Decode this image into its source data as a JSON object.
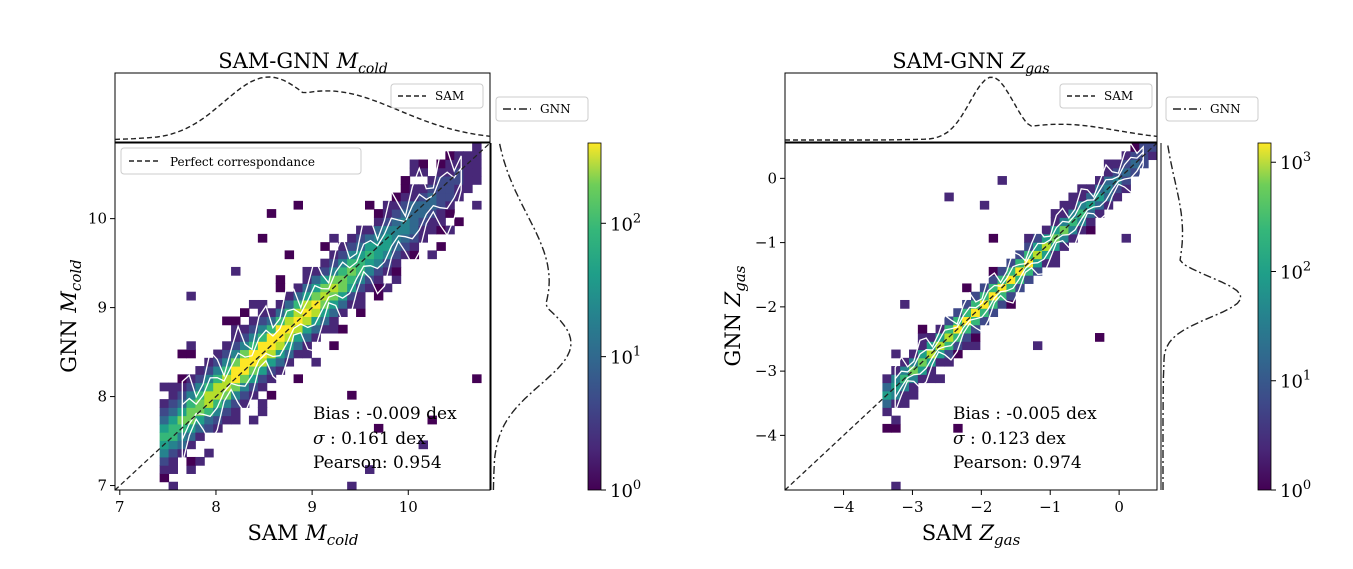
{
  "chart_data": [
    {
      "type": "heatmap",
      "title": "SAM-GNN $M_{cold}$",
      "title_main": "SAM-GNN ",
      "title_sym": "M",
      "title_sub": "cold",
      "xlabel_main": "SAM ",
      "ylabel_main": "GNN ",
      "label_sym": "M",
      "label_sub": "cold",
      "xlim": [
        6.95,
        10.85
      ],
      "ylim": [
        6.95,
        10.85
      ],
      "xticks": [
        "7",
        "8",
        "9",
        "10"
      ],
      "xtick_values": [
        7,
        8,
        9,
        10
      ],
      "yticks": [
        "7",
        "8",
        "9",
        "10"
      ],
      "ytick_values": [
        7,
        8,
        9,
        10
      ],
      "colorbar": {
        "scale": "log",
        "range": [
          1,
          400
        ],
        "ticks": [
          "10",
          "10",
          "10"
        ],
        "tick_exps": [
          "0",
          "1",
          "2"
        ],
        "tick_values": [
          1,
          10,
          100
        ]
      },
      "density_trend": {
        "slope": 0.95,
        "intercept": 0.45,
        "x_range": [
          7.6,
          10.6
        ],
        "peak_x": 8.55,
        "scatter_dex": 0.161
      },
      "stats": {
        "bias": "Bias : -0.009 dex",
        "sigma_sym": "σ",
        "sigma": " : 0.161 dex",
        "pearson": "Pearson:  0.954"
      },
      "legend_main": "Perfect correspondance",
      "legend_top": "SAM",
      "legend_side": "GNN",
      "marginal_peak_sam": 8.55,
      "marginal_peak_gnn": 8.6,
      "grid": false
    },
    {
      "type": "heatmap",
      "title": "SAM-GNN $Z_{gas}$",
      "title_main": "SAM-GNN ",
      "title_sym": "Z",
      "title_sub": "gas",
      "xlabel_main": "SAM ",
      "ylabel_main": "GNN ",
      "label_sym": "Z",
      "label_sub": "gas",
      "xlim": [
        -4.85,
        0.55
      ],
      "ylim": [
        -4.85,
        0.55
      ],
      "xticks": [
        "−4",
        "−3",
        "−2",
        "−1",
        "0"
      ],
      "xtick_values": [
        -4,
        -3,
        -2,
        -1,
        0
      ],
      "yticks": [
        "−4",
        "−3",
        "−2",
        "−1",
        "0"
      ],
      "ytick_values": [
        -4,
        -3,
        -2,
        -1,
        0
      ],
      "colorbar": {
        "scale": "log",
        "range": [
          1,
          1500
        ],
        "ticks": [
          "10",
          "10",
          "10",
          "10"
        ],
        "tick_exps": [
          "0",
          "1",
          "2",
          "3"
        ],
        "tick_values": [
          1,
          10,
          100,
          1000
        ]
      },
      "density_trend": {
        "slope": 1.0,
        "intercept": 0.0,
        "x_range": [
          -3.3,
          0.4
        ],
        "peak_x": -1.85,
        "scatter_dex": 0.123
      },
      "stats": {
        "bias": "Bias : -0.005 dex",
        "sigma_sym": "σ",
        "sigma": " : 0.123 dex",
        "pearson": "Pearson:  0.974"
      },
      "legend_top": "SAM",
      "legend_side": "GNN",
      "marginal_peak_sam": -1.85,
      "marginal_peak_gnn": -1.85,
      "grid": false
    }
  ]
}
